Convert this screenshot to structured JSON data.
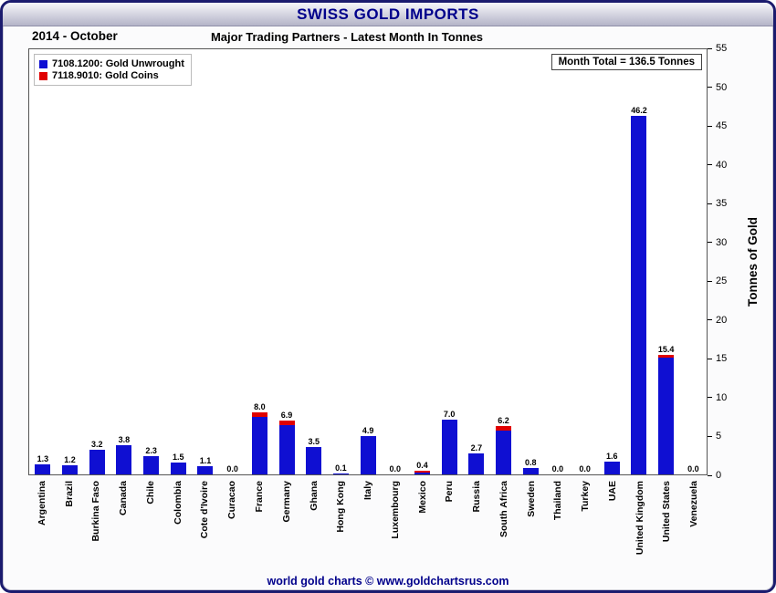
{
  "header": {
    "title": "SWISS GOLD IMPORTS"
  },
  "subheader": {
    "date": "2014 - October",
    "subtitle": "Major Trading Partners - Latest Month In Tonnes"
  },
  "legend": {
    "items": [
      {
        "label": "7108.1200: Gold Unwrought",
        "color": "#0f0fd2"
      },
      {
        "label": "7118.9010: Gold Coins",
        "color": "#e00000"
      }
    ]
  },
  "annotation": {
    "month_total": "Month Total = 136.5 Tonnes"
  },
  "footer": {
    "credit": "world gold charts © www.goldchartsrus.com"
  },
  "colors": {
    "title_text": "#00008b",
    "bar_blue": "#0f0fd2",
    "bar_red": "#e00000",
    "frame_border": "#1b1b6e"
  },
  "chart_data": {
    "type": "bar",
    "stacked": true,
    "title": "Major Trading Partners - Latest Month In Tonnes",
    "xlabel": "",
    "ylabel": "Tonnes of Gold",
    "ylim": [
      0,
      55
    ],
    "ytick_step": 5,
    "grid": false,
    "legend_position": "top-left",
    "categories": [
      "Argentina",
      "Brazil",
      "Burkina Faso",
      "Canada",
      "Chile",
      "Colombia",
      "Cote d'Ivoire",
      "Curacao",
      "France",
      "Germany",
      "Ghana",
      "Hong Kong",
      "Italy",
      "Luxembourg",
      "Mexico",
      "Peru",
      "Russia",
      "South Africa",
      "Sweden",
      "Thailand",
      "Turkey",
      "UAE",
      "United Kingdom",
      "United States",
      "Venezuela"
    ],
    "series": [
      {
        "name": "7108.1200: Gold Unwrought",
        "color": "#0f0fd2",
        "values": [
          1.3,
          1.2,
          3.2,
          3.8,
          2.3,
          1.5,
          1.1,
          0.0,
          7.4,
          6.4,
          3.5,
          0.1,
          4.9,
          0.0,
          0.2,
          7.0,
          2.7,
          5.7,
          0.8,
          0.0,
          0.0,
          1.6,
          46.2,
          15.0,
          0.0
        ]
      },
      {
        "name": "7118.9010: Gold Coins",
        "color": "#e00000",
        "values": [
          0,
          0,
          0,
          0,
          0,
          0,
          0,
          0,
          0.6,
          0.5,
          0,
          0,
          0,
          0,
          0.2,
          0,
          0,
          0.5,
          0,
          0,
          0,
          0,
          0,
          0.4,
          0
        ]
      }
    ],
    "totals": [
      1.3,
      1.2,
      3.2,
      3.8,
      2.3,
      1.5,
      1.1,
      0.0,
      8.0,
      6.9,
      3.5,
      0.1,
      4.9,
      0.0,
      0.4,
      7.0,
      2.7,
      6.2,
      0.8,
      0.0,
      0.0,
      1.6,
      46.2,
      15.4,
      0.0
    ],
    "bar_labels": [
      "1.3",
      "1.2",
      "3.2",
      "3.8",
      "2.3",
      "1.5",
      "1.1",
      "0.0",
      "8.0",
      "6.9",
      "3.5",
      "0.1",
      "4.9",
      "0.0",
      "0.4",
      "7.0",
      "2.7",
      "6.2",
      "0.8",
      "0.0",
      "0.0",
      "1.6",
      "46.2",
      "15.4",
      "0.0"
    ],
    "month_total_tonnes": 136.5
  }
}
